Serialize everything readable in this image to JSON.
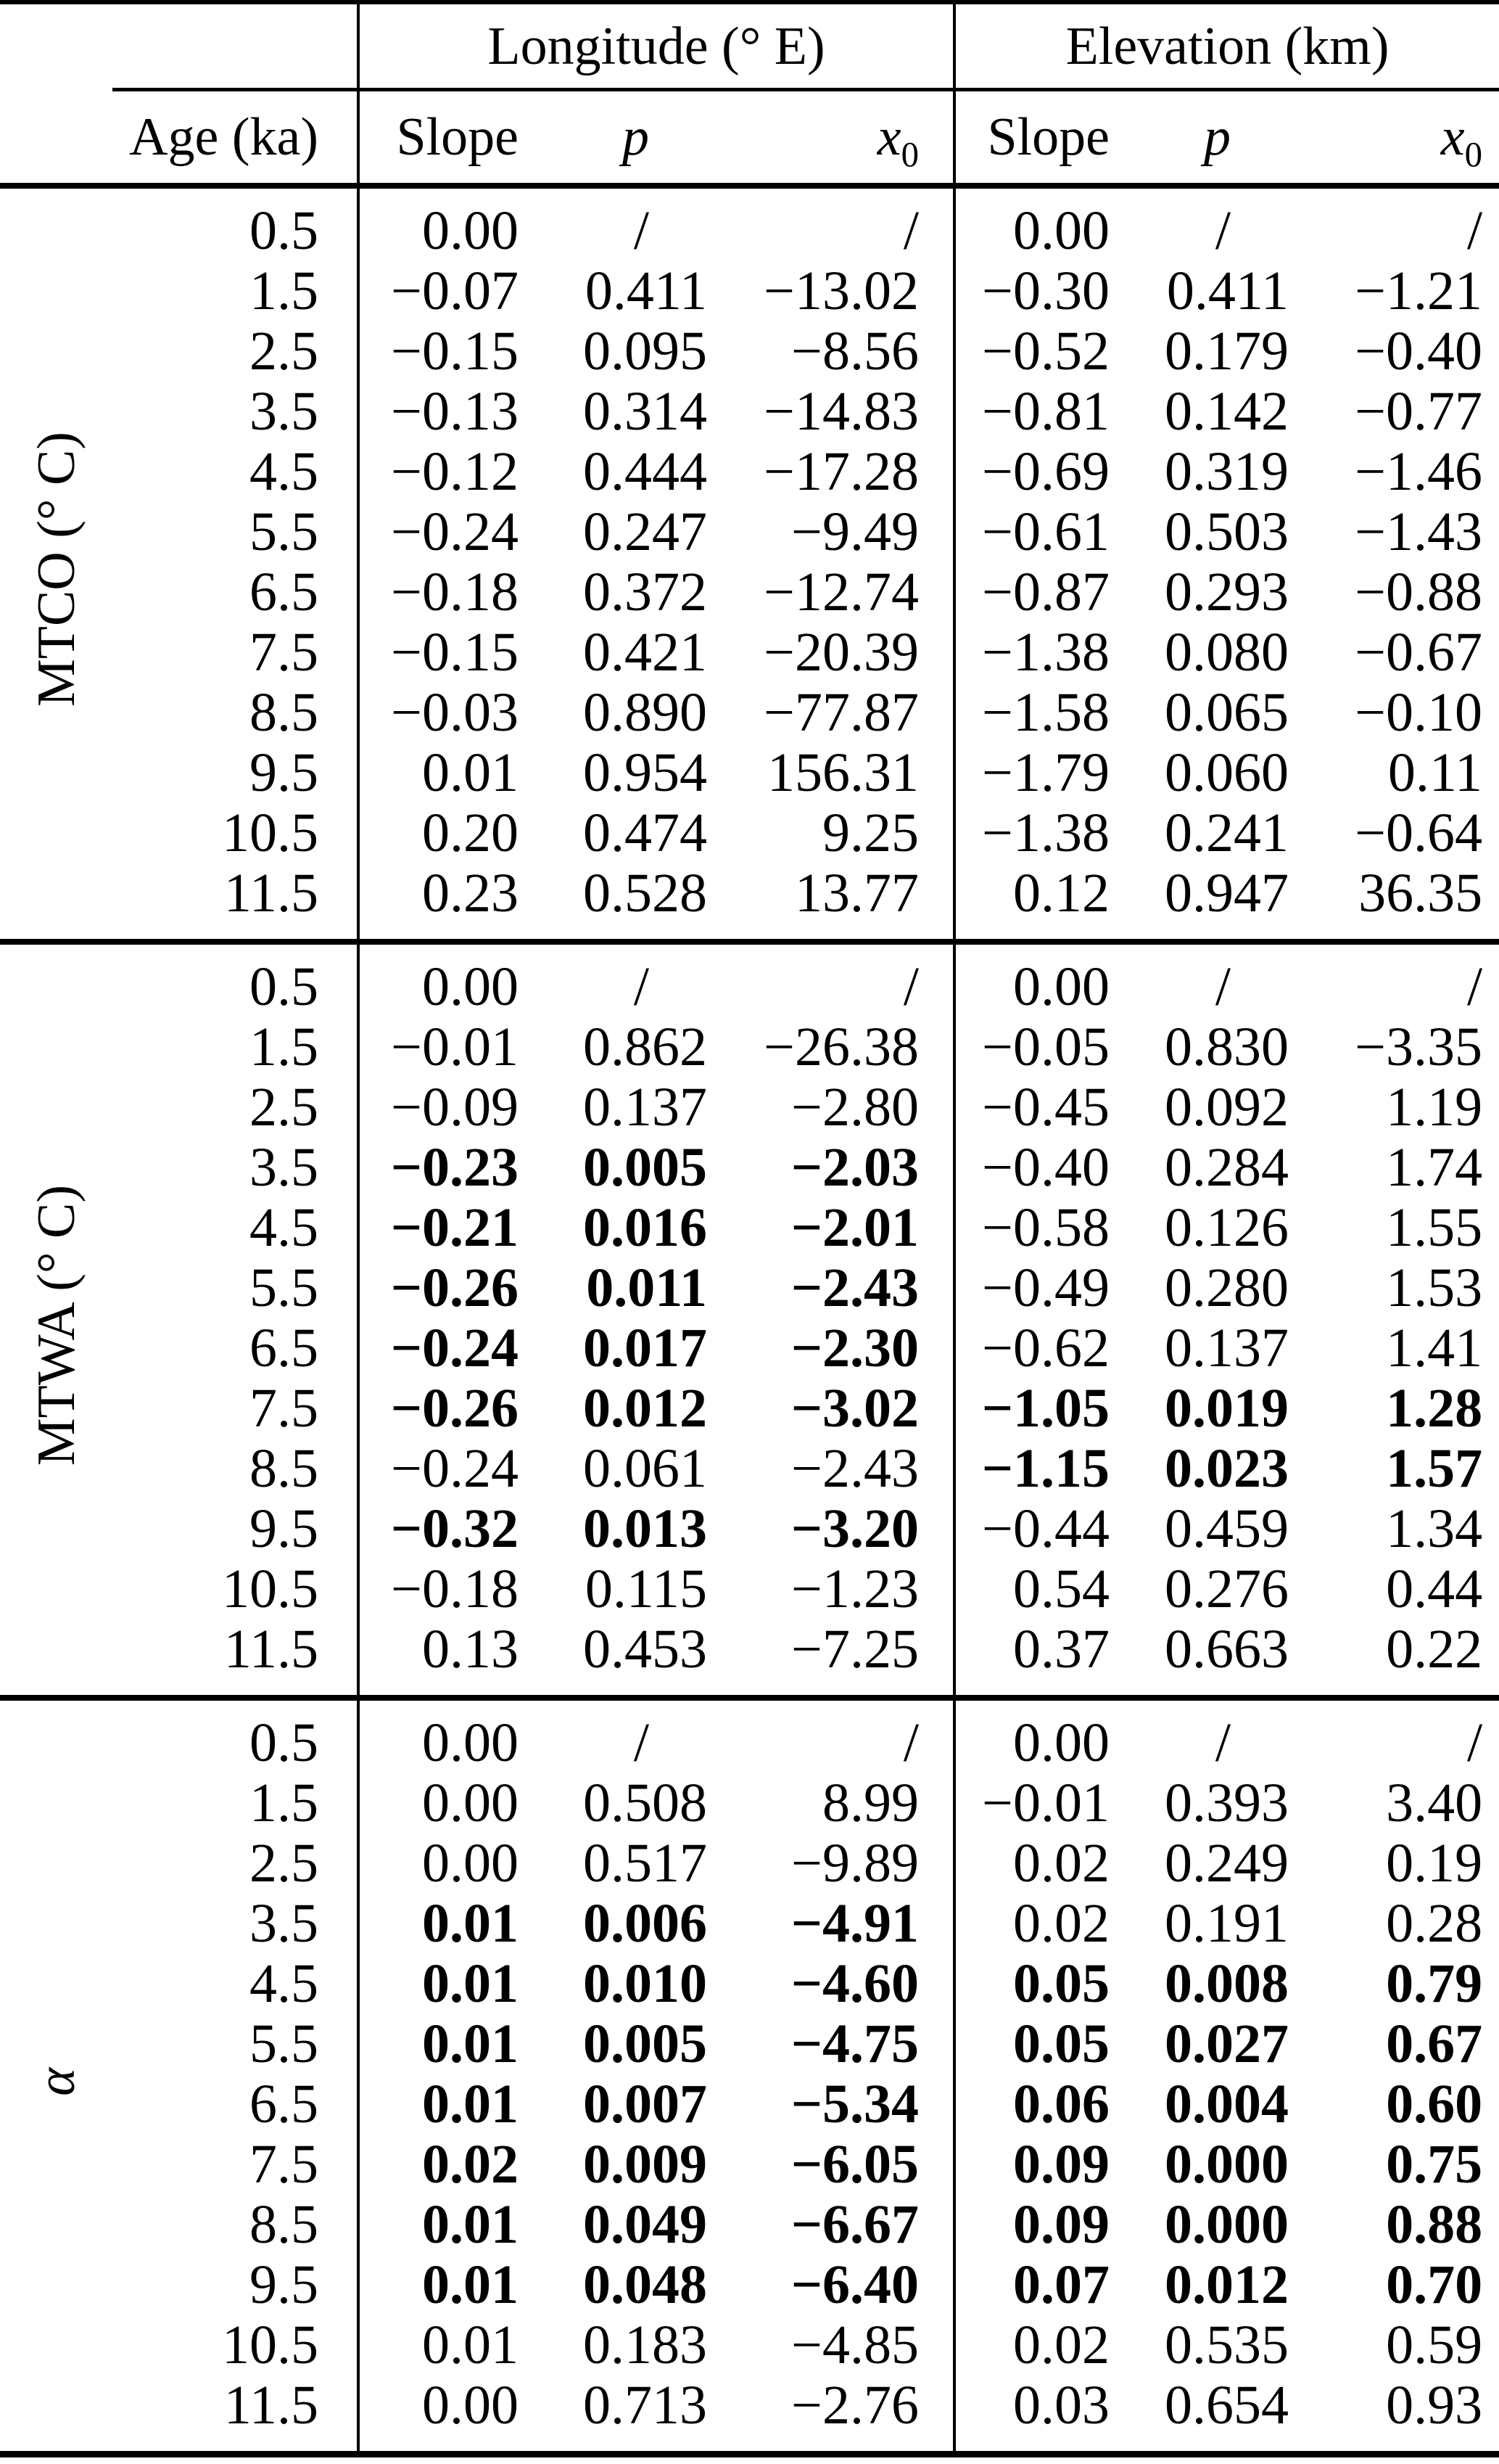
{
  "colors": {
    "text": "#000000",
    "background": "#ffffff",
    "rule": "#000000"
  },
  "table": {
    "col_groups": [
      {
        "label": "Longitude (° E)"
      },
      {
        "label": "Elevation (km)"
      }
    ],
    "header": {
      "age_label": "Age (ka)",
      "subcols": [
        {
          "text": "Slope",
          "italic": false,
          "sub": ""
        },
        {
          "text": "p",
          "italic": true,
          "sub": ""
        },
        {
          "text": "x",
          "italic": true,
          "sub": "0"
        }
      ]
    },
    "placeholder": "/",
    "sections": [
      {
        "id": "mtco",
        "label": "MTCO (° C)",
        "italic": false,
        "rows": [
          {
            "cells": [
              "0.5",
              "0.00",
              "/",
              "/",
              "0.00",
              "/",
              "/"
            ],
            "bold": []
          },
          {
            "cells": [
              "1.5",
              "−0.07",
              "0.411",
              "−13.02",
              "−0.30",
              "0.411",
              "−1.21"
            ],
            "bold": []
          },
          {
            "cells": [
              "2.5",
              "−0.15",
              "0.095",
              "−8.56",
              "−0.52",
              "0.179",
              "−0.40"
            ],
            "bold": []
          },
          {
            "cells": [
              "3.5",
              "−0.13",
              "0.314",
              "−14.83",
              "−0.81",
              "0.142",
              "−0.77"
            ],
            "bold": []
          },
          {
            "cells": [
              "4.5",
              "−0.12",
              "0.444",
              "−17.28",
              "−0.69",
              "0.319",
              "−1.46"
            ],
            "bold": []
          },
          {
            "cells": [
              "5.5",
              "−0.24",
              "0.247",
              "−9.49",
              "−0.61",
              "0.503",
              "−1.43"
            ],
            "bold": []
          },
          {
            "cells": [
              "6.5",
              "−0.18",
              "0.372",
              "−12.74",
              "−0.87",
              "0.293",
              "−0.88"
            ],
            "bold": []
          },
          {
            "cells": [
              "7.5",
              "−0.15",
              "0.421",
              "−20.39",
              "−1.38",
              "0.080",
              "−0.67"
            ],
            "bold": []
          },
          {
            "cells": [
              "8.5",
              "−0.03",
              "0.890",
              "−77.87",
              "−1.58",
              "0.065",
              "−0.10"
            ],
            "bold": []
          },
          {
            "cells": [
              "9.5",
              "0.01",
              "0.954",
              "156.31",
              "−1.79",
              "0.060",
              "0.11"
            ],
            "bold": []
          },
          {
            "cells": [
              "10.5",
              "0.20",
              "0.474",
              "9.25",
              "−1.38",
              "0.241",
              "−0.64"
            ],
            "bold": []
          },
          {
            "cells": [
              "11.5",
              "0.23",
              "0.528",
              "13.77",
              "0.12",
              "0.947",
              "36.35"
            ],
            "bold": []
          }
        ]
      },
      {
        "id": "mtwa",
        "label": "MTWA (° C)",
        "italic": false,
        "rows": [
          {
            "cells": [
              "0.5",
              "0.00",
              "/",
              "/",
              "0.00",
              "/",
              "/"
            ],
            "bold": []
          },
          {
            "cells": [
              "1.5",
              "−0.01",
              "0.862",
              "−26.38",
              "−0.05",
              "0.830",
              "−3.35"
            ],
            "bold": []
          },
          {
            "cells": [
              "2.5",
              "−0.09",
              "0.137",
              "−2.80",
              "−0.45",
              "0.092",
              "1.19"
            ],
            "bold": []
          },
          {
            "cells": [
              "3.5",
              "−0.23",
              "0.005",
              "−2.03",
              "−0.40",
              "0.284",
              "1.74"
            ],
            "bold": [
              1,
              2,
              3
            ]
          },
          {
            "cells": [
              "4.5",
              "−0.21",
              "0.016",
              "−2.01",
              "−0.58",
              "0.126",
              "1.55"
            ],
            "bold": [
              1,
              2,
              3
            ]
          },
          {
            "cells": [
              "5.5",
              "−0.26",
              "0.011",
              "−2.43",
              "−0.49",
              "0.280",
              "1.53"
            ],
            "bold": [
              1,
              2,
              3
            ]
          },
          {
            "cells": [
              "6.5",
              "−0.24",
              "0.017",
              "−2.30",
              "−0.62",
              "0.137",
              "1.41"
            ],
            "bold": [
              1,
              2,
              3
            ]
          },
          {
            "cells": [
              "7.5",
              "−0.26",
              "0.012",
              "−3.02",
              "−1.05",
              "0.019",
              "1.28"
            ],
            "bold": [
              1,
              2,
              3,
              4,
              5,
              6
            ]
          },
          {
            "cells": [
              "8.5",
              "−0.24",
              "0.061",
              "−2.43",
              "−1.15",
              "0.023",
              "1.57"
            ],
            "bold": [
              4,
              5,
              6
            ]
          },
          {
            "cells": [
              "9.5",
              "−0.32",
              "0.013",
              "−3.20",
              "−0.44",
              "0.459",
              "1.34"
            ],
            "bold": [
              1,
              2,
              3
            ]
          },
          {
            "cells": [
              "10.5",
              "−0.18",
              "0.115",
              "−1.23",
              "0.54",
              "0.276",
              "0.44"
            ],
            "bold": []
          },
          {
            "cells": [
              "11.5",
              "0.13",
              "0.453",
              "−7.25",
              "0.37",
              "0.663",
              "0.22"
            ],
            "bold": []
          }
        ]
      },
      {
        "id": "alpha",
        "label": "α",
        "italic": true,
        "rows": [
          {
            "cells": [
              "0.5",
              "0.00",
              "/",
              "/",
              "0.00",
              "/",
              "/"
            ],
            "bold": []
          },
          {
            "cells": [
              "1.5",
              "0.00",
              "0.508",
              "8.99",
              "−0.01",
              "0.393",
              "3.40"
            ],
            "bold": []
          },
          {
            "cells": [
              "2.5",
              "0.00",
              "0.517",
              "−9.89",
              "0.02",
              "0.249",
              "0.19"
            ],
            "bold": []
          },
          {
            "cells": [
              "3.5",
              "0.01",
              "0.006",
              "−4.91",
              "0.02",
              "0.191",
              "0.28"
            ],
            "bold": [
              1,
              2,
              3
            ]
          },
          {
            "cells": [
              "4.5",
              "0.01",
              "0.010",
              "−4.60",
              "0.05",
              "0.008",
              "0.79"
            ],
            "bold": [
              1,
              2,
              3,
              4,
              5,
              6
            ]
          },
          {
            "cells": [
              "5.5",
              "0.01",
              "0.005",
              "−4.75",
              "0.05",
              "0.027",
              "0.67"
            ],
            "bold": [
              1,
              2,
              3,
              4,
              5,
              6
            ]
          },
          {
            "cells": [
              "6.5",
              "0.01",
              "0.007",
              "−5.34",
              "0.06",
              "0.004",
              "0.60"
            ],
            "bold": [
              1,
              2,
              3,
              4,
              5,
              6
            ]
          },
          {
            "cells": [
              "7.5",
              "0.02",
              "0.009",
              "−6.05",
              "0.09",
              "0.000",
              "0.75"
            ],
            "bold": [
              1,
              2,
              3,
              4,
              5,
              6
            ]
          },
          {
            "cells": [
              "8.5",
              "0.01",
              "0.049",
              "−6.67",
              "0.09",
              "0.000",
              "0.88"
            ],
            "bold": [
              1,
              2,
              3,
              4,
              5,
              6
            ]
          },
          {
            "cells": [
              "9.5",
              "0.01",
              "0.048",
              "−6.40",
              "0.07",
              "0.012",
              "0.70"
            ],
            "bold": [
              1,
              2,
              3,
              4,
              5,
              6
            ]
          },
          {
            "cells": [
              "10.5",
              "0.01",
              "0.183",
              "−4.85",
              "0.02",
              "0.535",
              "0.59"
            ],
            "bold": []
          },
          {
            "cells": [
              "11.5",
              "0.00",
              "0.713",
              "−2.76",
              "0.03",
              "0.654",
              "0.93"
            ],
            "bold": []
          }
        ]
      }
    ]
  }
}
